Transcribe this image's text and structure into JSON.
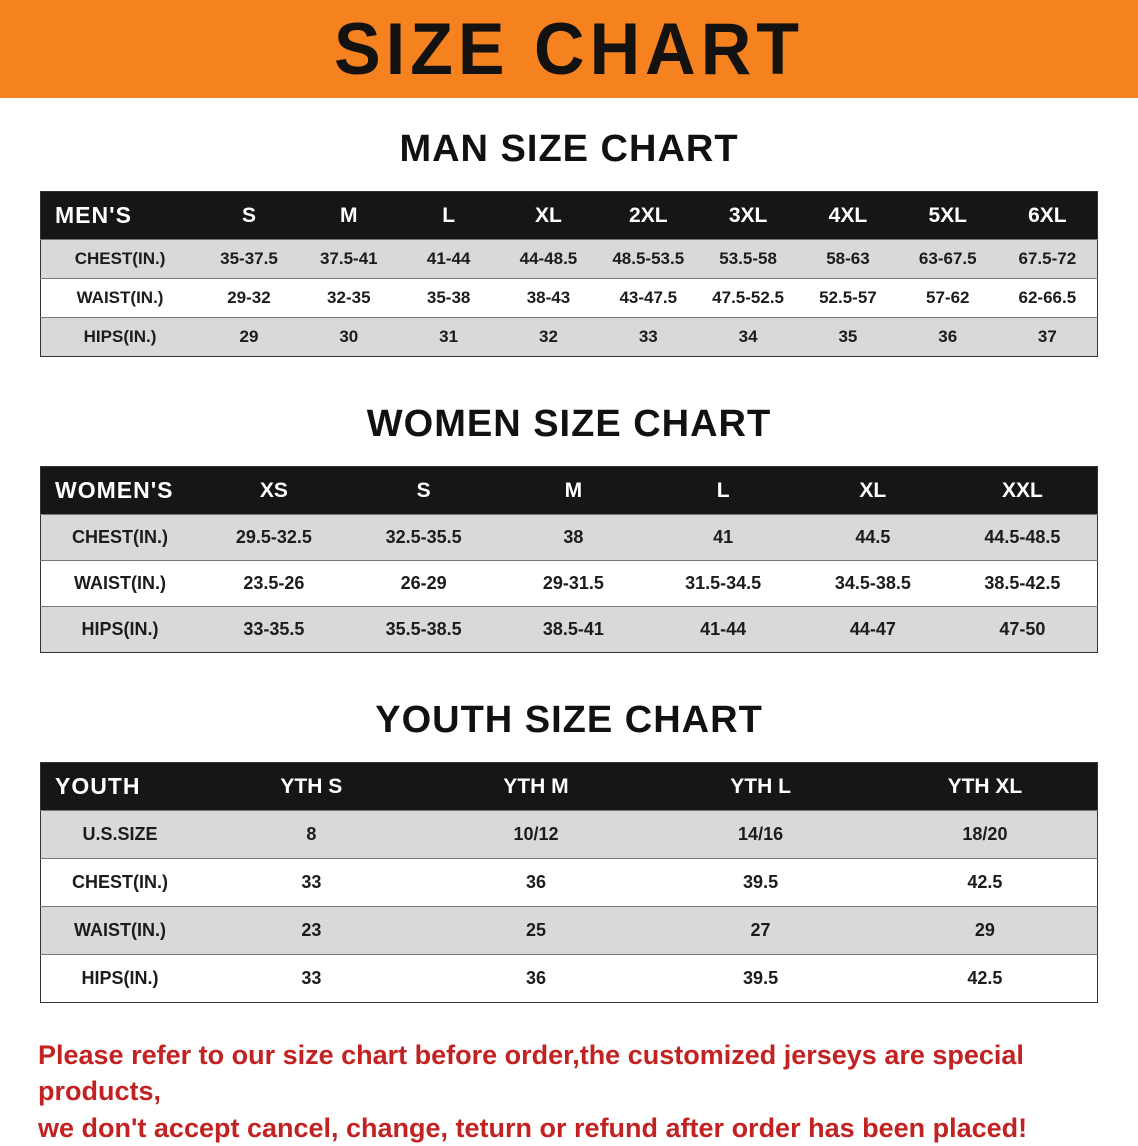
{
  "banner": {
    "title": "SIZE CHART"
  },
  "sections": [
    {
      "id": "men",
      "heading": "MAN SIZE CHART",
      "table": {
        "header": [
          "MEN'S",
          "S",
          "M",
          "L",
          "XL",
          "2XL",
          "3XL",
          "4XL",
          "5XL",
          "6XL"
        ],
        "rows": [
          [
            "CHEST(IN.)",
            "35-37.5",
            "37.5-41",
            "41-44",
            "44-48.5",
            "48.5-53.5",
            "53.5-58",
            "58-63",
            "63-67.5",
            "67.5-72"
          ],
          [
            "WAIST(IN.)",
            "29-32",
            "32-35",
            "35-38",
            "38-43",
            "43-47.5",
            "47.5-52.5",
            "52.5-57",
            "57-62",
            "62-66.5"
          ],
          [
            "HIPS(IN.)",
            "29",
            "30",
            "31",
            "32",
            "33",
            "34",
            "35",
            "36",
            "37"
          ]
        ]
      }
    },
    {
      "id": "women",
      "heading": "WOMEN SIZE CHART",
      "table": {
        "header": [
          "WOMEN'S",
          "XS",
          "S",
          "M",
          "L",
          "XL",
          "XXL"
        ],
        "rows": [
          [
            "CHEST(IN.)",
            "29.5-32.5",
            "32.5-35.5",
            "38",
            "41",
            "44.5",
            "44.5-48.5"
          ],
          [
            "WAIST(IN.)",
            "23.5-26",
            "26-29",
            "29-31.5",
            "31.5-34.5",
            "34.5-38.5",
            "38.5-42.5"
          ],
          [
            "HIPS(IN.)",
            "33-35.5",
            "35.5-38.5",
            "38.5-41",
            "41-44",
            "44-47",
            "47-50"
          ]
        ]
      }
    },
    {
      "id": "youth",
      "heading": "YOUTH SIZE CHART",
      "table": {
        "header": [
          "YOUTH",
          "YTH S",
          "YTH M",
          "YTH L",
          "YTH XL"
        ],
        "rows": [
          [
            "U.S.SIZE",
            "8",
            "10/12",
            "14/16",
            "18/20"
          ],
          [
            "CHEST(IN.)",
            "33",
            "36",
            "39.5",
            "42.5"
          ],
          [
            "WAIST(IN.)",
            "23",
            "25",
            "27",
            "29"
          ],
          [
            "HIPS(IN.)",
            "33",
            "36",
            "39.5",
            "42.5"
          ]
        ]
      }
    }
  ],
  "disclaimer": {
    "line1": "Please refer to our size chart before order,the customized jerseys are special products,",
    "line2": "we don't accept cancel, change, teturn or refund after order has been placed!"
  },
  "colors": {
    "banner_bg": "#f5821f",
    "header_bg": "#161616",
    "row_alt": "#d9d9d9",
    "disclaimer_color": "#c32222"
  }
}
